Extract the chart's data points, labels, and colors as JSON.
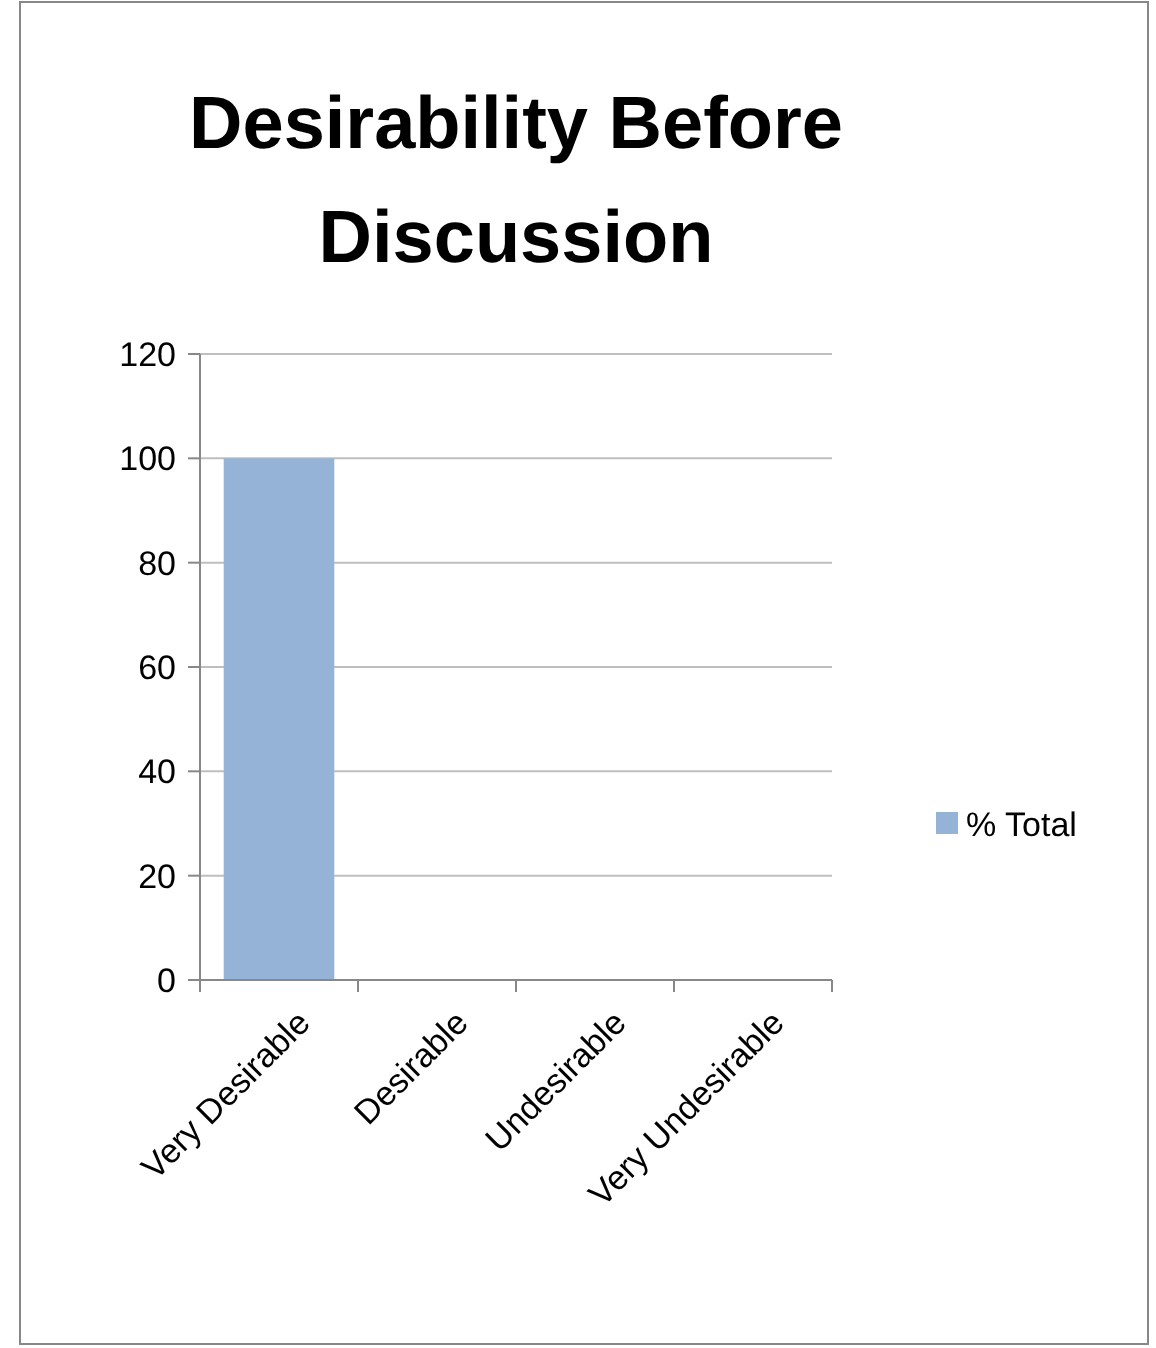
{
  "chart_data": {
    "type": "bar",
    "title": "Desirability Before Discussion",
    "categories": [
      "Very Desirable",
      "Desirable",
      "Undesirable",
      "Very Undesirable"
    ],
    "series": [
      {
        "name": "% Total",
        "color": "#95b3d7",
        "values": [
          100,
          0,
          0,
          0
        ]
      }
    ],
    "ylim": [
      0,
      120
    ],
    "yticks": [
      0,
      20,
      40,
      60,
      80,
      100,
      120
    ],
    "grid": "y",
    "legend": "right"
  }
}
